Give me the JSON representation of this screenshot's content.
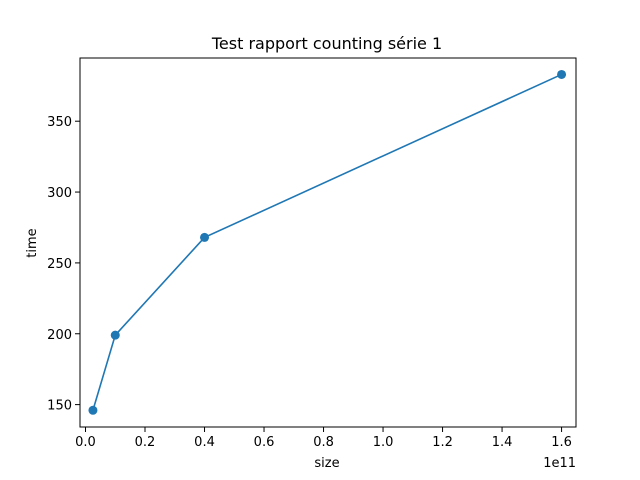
{
  "chart_data": {
    "type": "line",
    "title": "Test rapport counting série 1",
    "xlabel": "size",
    "ylabel": "time",
    "x_offset_label": "1e11",
    "x_scale": 100000000000.0,
    "x_ticks": [
      0.0,
      0.2,
      0.4,
      0.6,
      0.8,
      1.0,
      1.2,
      1.4,
      1.6
    ],
    "x_tick_labels": [
      "0.0",
      "0.2",
      "0.4",
      "0.6",
      "0.8",
      "1.0",
      "1.2",
      "1.4",
      "1.6"
    ],
    "y_ticks": [
      150,
      200,
      250,
      300,
      350
    ],
    "y_tick_labels": [
      "150",
      "200",
      "250",
      "300",
      "350"
    ],
    "xlim": [
      -0.0185,
      1.6485
    ],
    "ylim": [
      134.2,
      394.6
    ],
    "grid": false,
    "series": [
      {
        "color": "#1f77b4",
        "marker": "circle",
        "x": [
          2500000000.0,
          10000000000.0,
          40000000000.0,
          160000000000.0
        ],
        "y": [
          146,
          199,
          268,
          383
        ]
      }
    ]
  }
}
